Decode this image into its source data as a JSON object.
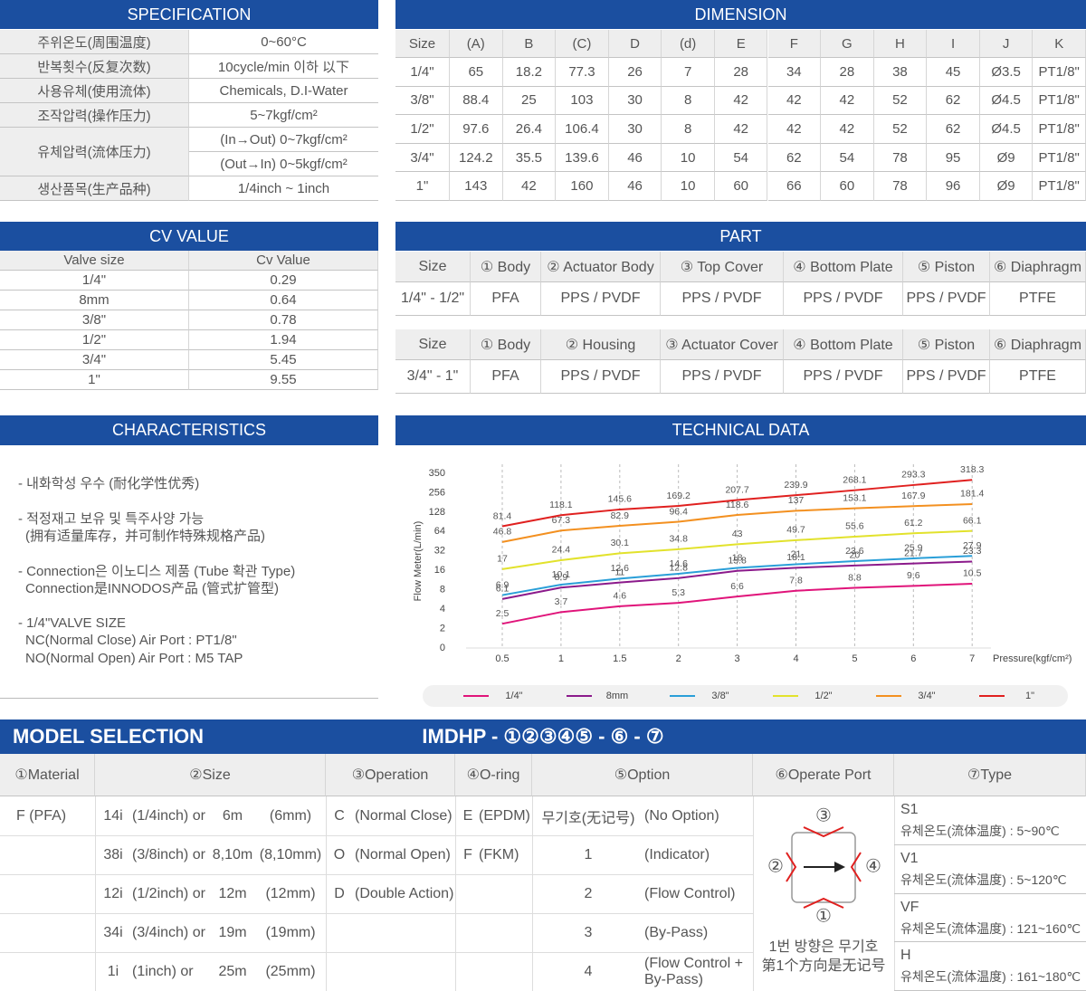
{
  "specification": {
    "title": "SPECIFICATION",
    "rows": [
      [
        "주위온도(周围温度)",
        "0~60°C"
      ],
      [
        "반복횟수(反复次数)",
        "10cycle/min 이하 以下"
      ],
      [
        "사용유체(使用流体)",
        "Chemicals, D.I-Water"
      ],
      [
        "조작압력(操作压力)",
        "5~7kgf/cm²"
      ],
      [
        "유체압력(流体压力)",
        "(In→Out) 0~7kgf/cm²",
        "(Out→In) 0~5kgf/cm²"
      ],
      [
        "생산품목(生产品种)",
        "1/4inch ~ 1inch"
      ]
    ]
  },
  "dimension": {
    "title": "DIMENSION",
    "header": [
      "Size",
      "(A)",
      "B",
      "(C)",
      "D",
      "(d)",
      "E",
      "F",
      "G",
      "H",
      "I",
      "J",
      "K"
    ],
    "rows": [
      [
        "1/4\"",
        "65",
        "18.2",
        "77.3",
        "26",
        "7",
        "28",
        "34",
        "28",
        "38",
        "45",
        "Ø3.5",
        "PT1/8\""
      ],
      [
        "3/8\"",
        "88.4",
        "25",
        "103",
        "30",
        "8",
        "42",
        "42",
        "42",
        "52",
        "62",
        "Ø4.5",
        "PT1/8\""
      ],
      [
        "1/2\"",
        "97.6",
        "26.4",
        "106.4",
        "30",
        "8",
        "42",
        "42",
        "42",
        "52",
        "62",
        "Ø4.5",
        "PT1/8\""
      ],
      [
        "3/4\"",
        "124.2",
        "35.5",
        "139.6",
        "46",
        "10",
        "54",
        "62",
        "54",
        "78",
        "95",
        "Ø9",
        "PT1/8\""
      ],
      [
        "1\"",
        "143",
        "42",
        "160",
        "46",
        "10",
        "60",
        "66",
        "60",
        "78",
        "96",
        "Ø9",
        "PT1/8\""
      ]
    ]
  },
  "cv_value": {
    "title": "CV VALUE",
    "header": [
      "Valve size",
      "Cv Value"
    ],
    "rows": [
      [
        "1/4\"",
        "0.29"
      ],
      [
        "8mm",
        "0.64"
      ],
      [
        "3/8\"",
        "0.78"
      ],
      [
        "1/2\"",
        "1.94"
      ],
      [
        "3/4\"",
        "5.45"
      ],
      [
        "1\"",
        "9.55"
      ]
    ]
  },
  "part": {
    "title": "PART",
    "tables": [
      {
        "header": [
          "Size",
          "① Body",
          "② Actuator Body",
          "③ Top Cover",
          "④ Bottom Plate",
          "⑤ Piston",
          "⑥ Diaphragm"
        ],
        "row": [
          "1/4\" - 1/2\"",
          "PFA",
          "PPS / PVDF",
          "PPS / PVDF",
          "PPS / PVDF",
          "PPS / PVDF",
          "PTFE"
        ]
      },
      {
        "header": [
          "Size",
          "① Body",
          "② Housing",
          "③ Actuator Cover",
          "④ Bottom Plate",
          "⑤ Piston",
          "⑥ Diaphragm"
        ],
        "row": [
          "3/4\" - 1\"",
          "PFA",
          "PPS / PVDF",
          "PPS / PVDF",
          "PPS / PVDF",
          "PPS / PVDF",
          "PTFE"
        ]
      }
    ]
  },
  "characteristics": {
    "title": "CHARACTERISTICS",
    "items": [
      [
        "- 내화학성 우수 (耐化学性优秀)"
      ],
      [
        "- 적정재고 보유 및 특주사양 가능",
        "(拥有适量库存，并可制作特殊规格产品)"
      ],
      [
        "- Connection은 이노디스 제품 (Tube 확관 Type)",
        "Connection是INNODOS产品 (管式扩管型)"
      ],
      [
        "- 1/4\"VALVE SIZE",
        "NC(Normal Close) Air Port : PT1/8\"",
        "NO(Normal Open) Air Port : M5 TAP"
      ]
    ]
  },
  "chart_data": {
    "type": "line",
    "title": "TECHNICAL DATA",
    "x_label": "Pressure(kgf/cm²)",
    "y_label": "Flow Meter(L/min)",
    "categories": [
      "0.5",
      "1",
      "1.5",
      "2",
      "3",
      "4",
      "5",
      "6",
      "7"
    ],
    "ylim": [
      0,
      350
    ],
    "yticks": [
      0,
      2,
      4,
      8,
      16,
      32,
      64,
      128,
      256,
      350
    ],
    "series": [
      {
        "name": "1/4\"",
        "color": "#e0147a",
        "values": [
          2.5,
          3.7,
          4.6,
          5.3,
          6.6,
          7.8,
          8.8,
          9.6,
          10.5
        ]
      },
      {
        "name": "8mm",
        "color": "#8b1a8b",
        "values": [
          6.1,
          8.9,
          11,
          12.8,
          15.8,
          18.1,
          20,
          21.7,
          23.3
        ]
      },
      {
        "name": "3/8\"",
        "color": "#2a9fd8",
        "values": [
          6.9,
          10.1,
          12.6,
          14.6,
          18,
          21,
          23.6,
          25.9,
          27.9
        ]
      },
      {
        "name": "1/2\"",
        "color": "#e2e22c",
        "values": [
          17,
          24.4,
          30.1,
          34.8,
          43,
          49.7,
          55.6,
          61.2,
          66.1
        ]
      },
      {
        "name": "3/4\"",
        "color": "#f39020",
        "values": [
          46.8,
          67.3,
          82.9,
          96.4,
          118.6,
          137,
          153.1,
          167.9,
          181.4
        ]
      },
      {
        "name": "1\"",
        "color": "#e0201f",
        "values": [
          81.4,
          118.1,
          145.6,
          169.2,
          207.7,
          239.9,
          268.1,
          293.3,
          318.3
        ]
      }
    ]
  },
  "model_selection": {
    "title": "MODEL SELECTION",
    "code": "IMDHP - ①②③④⑤ - ⑥ - ⑦",
    "headers": [
      "①Material",
      "②Size",
      "③Operation",
      "④O-ring",
      "⑤Option",
      "⑥Operate Port",
      "⑦Type"
    ],
    "material": [
      "F (PFA)"
    ],
    "size": [
      [
        "14i",
        "(1/4inch) or",
        "6m",
        "(6mm)"
      ],
      [
        "38i",
        "(3/8inch) or",
        "8,10m",
        "(8,10mm)"
      ],
      [
        "12i",
        "(1/2inch) or",
        "12m",
        "(12mm)"
      ],
      [
        "34i",
        "(3/4inch) or",
        "19m",
        "(19mm)"
      ],
      [
        "1i",
        "(1inch) or",
        "25m",
        "(25mm)"
      ]
    ],
    "operation": [
      [
        "C",
        "(Normal Close)"
      ],
      [
        "O",
        "(Normal Open)"
      ],
      [
        "D",
        "(Double Action)"
      ]
    ],
    "o_ring": [
      [
        "E",
        "(EPDM)"
      ],
      [
        "F",
        "(FKM)"
      ]
    ],
    "option": [
      [
        "무기호(无记号)",
        "(No Option)"
      ],
      [
        "1",
        "(Indicator)"
      ],
      [
        "2",
        "(Flow Control)"
      ],
      [
        "3",
        "(By-Pass)"
      ],
      [
        "4",
        "(Flow Control + By-Pass)"
      ]
    ],
    "operate_port": {
      "labels": [
        "③",
        "②",
        "④",
        "①"
      ],
      "note": [
        "1번 방향은 무기호",
        "第1个方向是无记号"
      ]
    },
    "type": [
      [
        "S1",
        "유체온도(流体温度) : 5~90℃"
      ],
      [
        "V1",
        "유체온도(流体温度) : 5~120℃"
      ],
      [
        "VF",
        "유체온도(流体温度) : 121~160℃"
      ],
      [
        "H",
        "유체온도(流体温度) : 161~180℃"
      ]
    ]
  }
}
